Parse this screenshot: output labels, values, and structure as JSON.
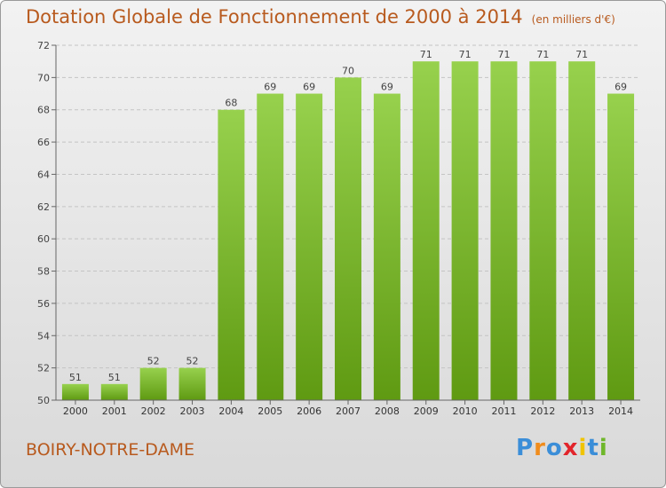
{
  "title": "Dotation Globale de Fonctionnement de 2000 à 2014",
  "unit": "(en milliers d'€)",
  "commune": "BOIRY-NOTRE-DAME",
  "logo": {
    "letters": [
      "P",
      "r",
      "o",
      "x",
      "i",
      "t",
      "i"
    ],
    "colors": [
      "#3b8ed8",
      "#f08c1c",
      "#3b8ed8",
      "#e2252b",
      "#f0c400",
      "#3b8ed8",
      "#6fb72a"
    ]
  },
  "colors": {
    "bar_light": "#97d14d",
    "bar_dark": "#5f9a12",
    "accent": "#b85a1e"
  },
  "chart_data": {
    "type": "bar",
    "categories": [
      "2000",
      "2001",
      "2002",
      "2003",
      "2004",
      "2005",
      "2006",
      "2007",
      "2008",
      "2009",
      "2010",
      "2011",
      "2012",
      "2013",
      "2014"
    ],
    "values": [
      51,
      51,
      52,
      52,
      68,
      69,
      69,
      70,
      69,
      71,
      71,
      71,
      71,
      71,
      69
    ],
    "ylim": [
      50,
      72
    ],
    "yticks": [
      50,
      52,
      54,
      56,
      58,
      60,
      62,
      64,
      66,
      68,
      70,
      72
    ],
    "grid": true,
    "xlabel": "",
    "ylabel": ""
  }
}
